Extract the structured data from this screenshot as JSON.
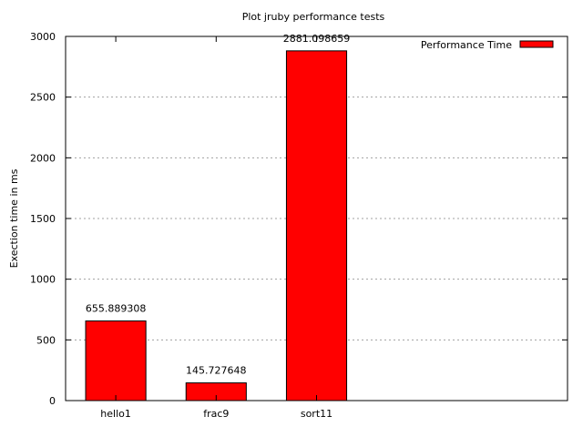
{
  "chart_data": {
    "type": "bar",
    "title": "Plot jruby performance tests",
    "xlabel": "",
    "ylabel": "Exection time in ms",
    "categories": [
      "hello1",
      "frac9",
      "sort11"
    ],
    "series": [
      {
        "name": "Performance Time",
        "values": [
          655.889308,
          145.727648,
          2881.098659
        ],
        "value_labels": [
          "655.889308",
          "145.727648",
          "2881.098659"
        ],
        "color": "#ff0000"
      }
    ],
    "ylim": [
      0,
      3000
    ],
    "yticks": [
      0,
      500,
      1000,
      1500,
      2000,
      2500,
      3000
    ],
    "ytick_labels": [
      "0",
      "500",
      "1000",
      "1500",
      "2000",
      "2500",
      "3000"
    ],
    "x_slots": 5,
    "grid": "horizontal dashed",
    "legend_position": "top-right"
  }
}
